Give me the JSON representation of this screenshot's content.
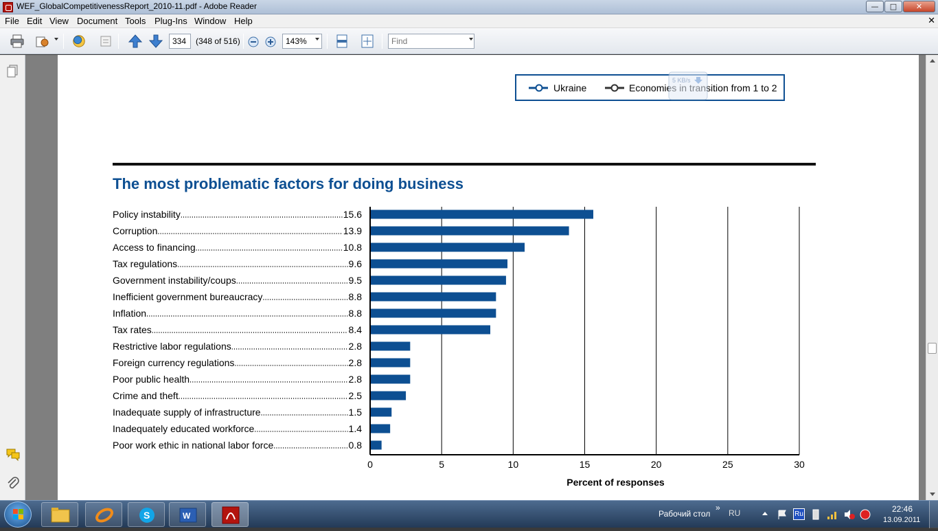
{
  "window": {
    "title": "WEF_GlobalCompetitivenessReport_2010-11.pdf - Adobe Reader",
    "controls": {
      "minimize": "—",
      "maximize": "□",
      "close": "✕"
    }
  },
  "menu": {
    "items": [
      "File",
      "Edit",
      "View",
      "Document",
      "Tools",
      "Plug-Ins",
      "Window",
      "Help"
    ],
    "close_glyph": "✕"
  },
  "toolbar": {
    "page_number": "334",
    "page_count": "(348 of 516)",
    "zoom": "143%",
    "find_placeholder": "Find"
  },
  "legend": {
    "items": [
      "Ukraine",
      "Economies in transition from 1 to 2"
    ],
    "overlay_text": "5 KB/s"
  },
  "chart_data": {
    "type": "bar",
    "orientation": "horizontal",
    "title": "The most problematic factors for doing business",
    "xlabel": "Percent of responses",
    "ylabel": "",
    "xlim": [
      0,
      30
    ],
    "xticks": [
      "0",
      "5",
      "10",
      "15",
      "20",
      "25",
      "30"
    ],
    "grid": true,
    "color": "#0d4f92",
    "categories": [
      "Policy instability",
      "Corruption",
      "Access to financing",
      "Tax regulations",
      "Government instability/coups",
      "Inefficient government bureaucracy",
      "Inflation",
      "Tax rates",
      "Restrictive labor regulations",
      "Foreign currency regulations",
      "Poor public health",
      "Crime and theft",
      "Inadequate supply of infrastructure",
      "Inadequately educated workforce",
      "Poor work ethic in national labor force"
    ],
    "values": [
      15.6,
      13.9,
      10.8,
      9.6,
      9.5,
      8.8,
      8.8,
      8.4,
      2.8,
      2.8,
      2.8,
      2.5,
      1.5,
      1.4,
      0.8
    ],
    "value_labels": [
      "15.6",
      "13.9",
      "10.8",
      "9.6",
      "9.5",
      "8.8",
      "8.8",
      "8.4",
      "2.8",
      "2.8",
      "2.8",
      "2.5",
      "1.5",
      "1.4",
      "0.8"
    ]
  },
  "taskbar": {
    "desktop_label": "Рабочий стол",
    "lang": "RU",
    "lang_badge": "Ru",
    "time": "22:46",
    "date": "13.09.2011",
    "chevron": "»"
  }
}
